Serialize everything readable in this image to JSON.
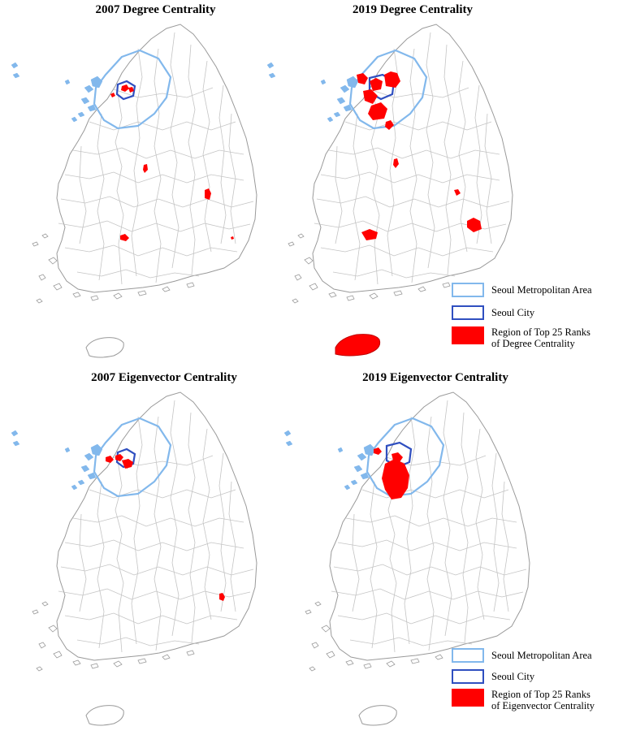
{
  "figure": {
    "panels": [
      {
        "id": "2007-degree",
        "title": "2007 Degree Centrality"
      },
      {
        "id": "2019-degree",
        "title": "2019 Degree Centrality"
      },
      {
        "id": "2007-eigen",
        "title": "2007 Eigenvector Centrality"
      },
      {
        "id": "2019-eigen",
        "title": "2019 Eigenvector Centrality"
      }
    ],
    "legend_degree": {
      "metro": "Seoul Metropolitan Area",
      "city": "Seoul City",
      "top_line1": "Region of Top 25 Ranks",
      "top_line2": "of Degree Centrality"
    },
    "legend_eigen": {
      "metro": "Seoul Metropolitan Area",
      "city": "Seoul City",
      "top_line1": "Region of Top 25 Ranks",
      "top_line2": "of Eigenvector Centrality"
    },
    "colors": {
      "metro_outline": "#82b8ec",
      "seoul_outline": "#2f4fc0",
      "top_region": "#ff0000",
      "district_lines": "#bfbfbf",
      "coast": "#9a9a9a"
    }
  }
}
